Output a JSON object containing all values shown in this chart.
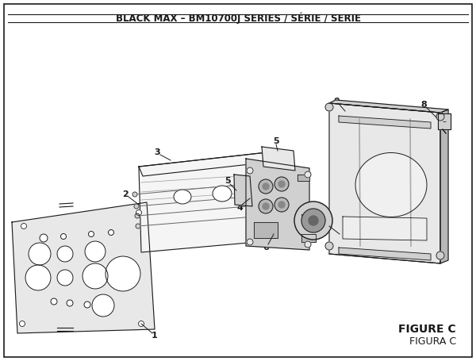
{
  "title": "BLACK MAX – BM10700J SERIES / SÉRIE / SERIE",
  "background_color": "#ffffff",
  "figure_label": "FIGURE C",
  "figure_sublabel": "FIGURA C",
  "title_fontsize": 8.5,
  "label_fontsize": 8
}
